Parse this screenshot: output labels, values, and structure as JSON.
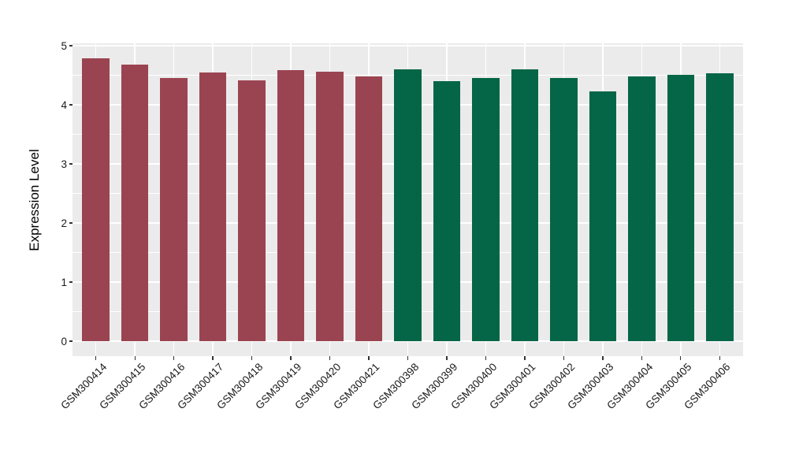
{
  "style": {
    "figure_background": "#FFFFFF",
    "panel_background": "#EBEBEB",
    "grid_color": "#FFFFFF",
    "axis_text_color": "#1A1A1A",
    "axis_title_color": "#000000",
    "tick_mark_color": "#333333"
  },
  "chart_data": {
    "type": "bar",
    "title": "",
    "xlabel": "",
    "ylabel": "Expression Level",
    "ylim": [
      0,
      5
    ],
    "yticks": [
      0,
      1,
      2,
      3,
      4,
      5
    ],
    "minor_gridlines": [
      0.5,
      1.5,
      2.5,
      3.5,
      4.5
    ],
    "grid": "white major and minor horizontal lines plus vertical lines at bar centers on grey panel",
    "legend_position": "none",
    "x_label_rotation_deg": 45,
    "series": [
      {
        "name": "maroon-group",
        "color": "#9B4451",
        "categories": [
          "GSM300414",
          "GSM300415",
          "GSM300416",
          "GSM300417",
          "GSM300418",
          "GSM300419",
          "GSM300420",
          "GSM300421"
        ],
        "values": [
          4.79,
          4.68,
          4.45,
          4.55,
          4.42,
          4.59,
          4.56,
          4.48
        ]
      },
      {
        "name": "green-group",
        "color": "#046647",
        "categories": [
          "GSM300398",
          "GSM300399",
          "GSM300400",
          "GSM300401",
          "GSM300402",
          "GSM300403",
          "GSM300404",
          "GSM300405",
          "GSM300406"
        ],
        "values": [
          4.6,
          4.4,
          4.45,
          4.6,
          4.46,
          4.23,
          4.48,
          4.51,
          4.54
        ]
      }
    ]
  }
}
